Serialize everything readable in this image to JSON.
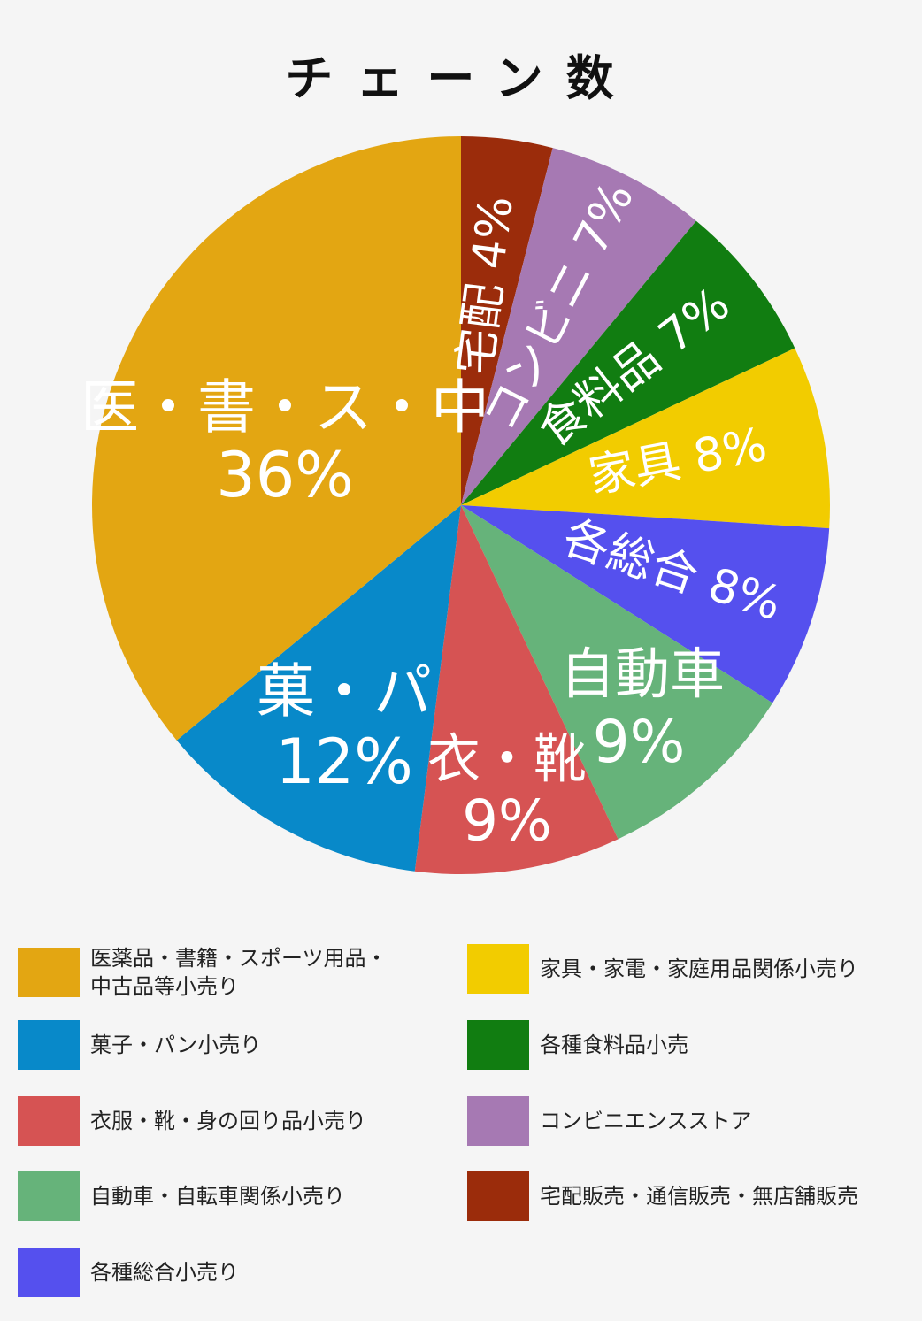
{
  "chart_data": {
    "type": "pie",
    "title": "チェーン数",
    "slices": [
      {
        "label": "宅配販売・通信販売・無店舗販売",
        "short": "宅配 4%",
        "value": 4,
        "color": "#9b2c0b"
      },
      {
        "label": "コンビニエンスストア",
        "short": "コンビニ 7%",
        "value": 7,
        "color": "#a679b3"
      },
      {
        "label": "各種食料品小売",
        "short": "食料品 7%",
        "value": 7,
        "color": "#117d11"
      },
      {
        "label": "家具・家電・家庭用品関係小売り",
        "short": "家具 8%",
        "value": 8,
        "color": "#f2cc00"
      },
      {
        "label": "各種総合小売り",
        "short": "各総合 8%",
        "value": 8,
        "color": "#5550ee"
      },
      {
        "label": "自動車・自転車関係小売り",
        "short_name": "自動車",
        "short_pct": "9%",
        "value": 9,
        "color": "#66b37a"
      },
      {
        "label": "衣服・靴・身の回り品小売り",
        "short_name": "衣・靴",
        "short_pct": "9%",
        "value": 9,
        "color": "#d65353"
      },
      {
        "label": "菓子・パン小売り",
        "short_name": "菓・パ",
        "short_pct": "12%",
        "value": 12,
        "color": "#0889c9"
      },
      {
        "label": "医薬品・書籍・スポーツ用品・中古品等小売り",
        "short_name": "医・書・ス・中",
        "short_pct": "36%",
        "value": 36,
        "color": "#e3a612"
      }
    ],
    "legend_placement": "bottom"
  },
  "legend": {
    "left": [
      {
        "line1": "医薬品・書籍・スポーツ用品・",
        "line2": "中古品等小売り",
        "color": "#e3a612"
      },
      {
        "line1": "菓子・パン小売り",
        "color": "#0889c9"
      },
      {
        "line1": "衣服・靴・身の回り品小売り",
        "color": "#d65353"
      },
      {
        "line1": "自動車・自転車関係小売り",
        "color": "#66b37a"
      },
      {
        "line1": "各種総合小売り",
        "color": "#5550ee"
      }
    ],
    "right": [
      {
        "line1": "家具・家電・家庭用品関係小売り",
        "color": "#f2cc00"
      },
      {
        "line1": "各種食料品小売",
        "color": "#117d11"
      },
      {
        "line1": "コンビニエンスストア",
        "color": "#a679b3"
      },
      {
        "line1": "宅配販売・通信販売・無店舗販売",
        "color": "#9b2c0b"
      }
    ]
  }
}
